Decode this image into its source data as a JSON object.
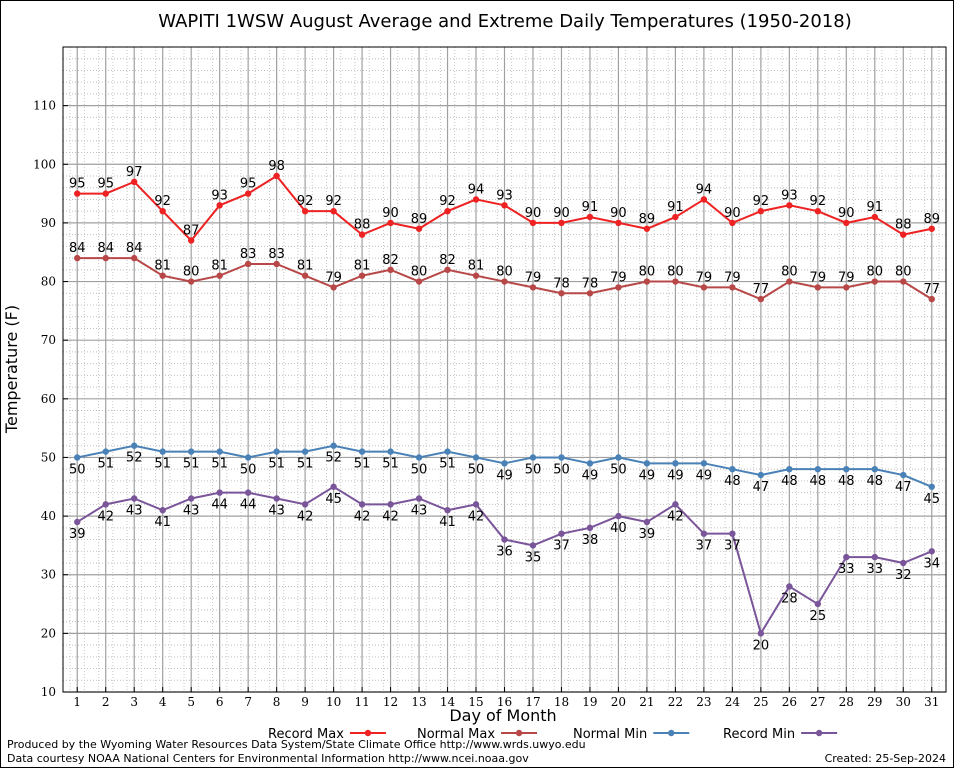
{
  "chart_data": {
    "type": "line",
    "title": "WAPITI 1WSW August Average and Extreme Daily Temperatures (1950-2018)",
    "xlabel": "Day of Month",
    "ylabel": "Temperature (F)",
    "x": [
      1,
      2,
      3,
      4,
      5,
      6,
      7,
      8,
      9,
      10,
      11,
      12,
      13,
      14,
      15,
      16,
      17,
      18,
      19,
      20,
      21,
      22,
      23,
      24,
      25,
      26,
      27,
      28,
      29,
      30,
      31
    ],
    "xlim": [
      0.5,
      31.5
    ],
    "ylim": [
      10,
      120
    ],
    "yticks": [
      10,
      20,
      30,
      40,
      50,
      60,
      70,
      80,
      90,
      100,
      110
    ],
    "grid": true,
    "legend_position": "bottom",
    "series": [
      {
        "name": "Record Max",
        "color": "#ee2222",
        "label_pos": "above",
        "values": [
          95,
          95,
          97,
          92,
          87,
          93,
          95,
          98,
          92,
          92,
          88,
          90,
          89,
          92,
          94,
          93,
          90,
          90,
          91,
          90,
          89,
          91,
          94,
          90,
          92,
          93,
          92,
          90,
          91,
          88,
          89
        ]
      },
      {
        "name": "Normal Max",
        "color": "#b84848",
        "label_pos": "above",
        "values": [
          84,
          84,
          84,
          81,
          80,
          81,
          83,
          83,
          81,
          79,
          81,
          82,
          80,
          82,
          81,
          80,
          79,
          78,
          78,
          79,
          80,
          80,
          79,
          79,
          77,
          80,
          79,
          79,
          80,
          80,
          77
        ]
      },
      {
        "name": "Normal Min",
        "color": "#4a82b8",
        "label_pos": "below",
        "values": [
          50,
          51,
          52,
          51,
          51,
          51,
          50,
          51,
          51,
          52,
          51,
          51,
          50,
          51,
          50,
          49,
          50,
          50,
          49,
          50,
          49,
          49,
          49,
          48,
          47,
          48,
          48,
          48,
          48,
          47,
          45
        ]
      },
      {
        "name": "Record Min",
        "color": "#7a559a",
        "label_pos": "below",
        "values": [
          39,
          42,
          43,
          41,
          43,
          44,
          44,
          43,
          42,
          45,
          42,
          42,
          43,
          41,
          42,
          36,
          35,
          37,
          38,
          40,
          39,
          42,
          37,
          37,
          20,
          28,
          25,
          33,
          33,
          32,
          34
        ]
      }
    ]
  },
  "footer": {
    "produced": "Produced by the Wyoming Water Resources Data System/State Climate Office http://www.wrds.uwyo.edu",
    "courtesy": "Data courtesy NOAA National Centers for Environmental Information http://www.ncei.noaa.gov",
    "created": "Created: 25-Sep-2024"
  }
}
